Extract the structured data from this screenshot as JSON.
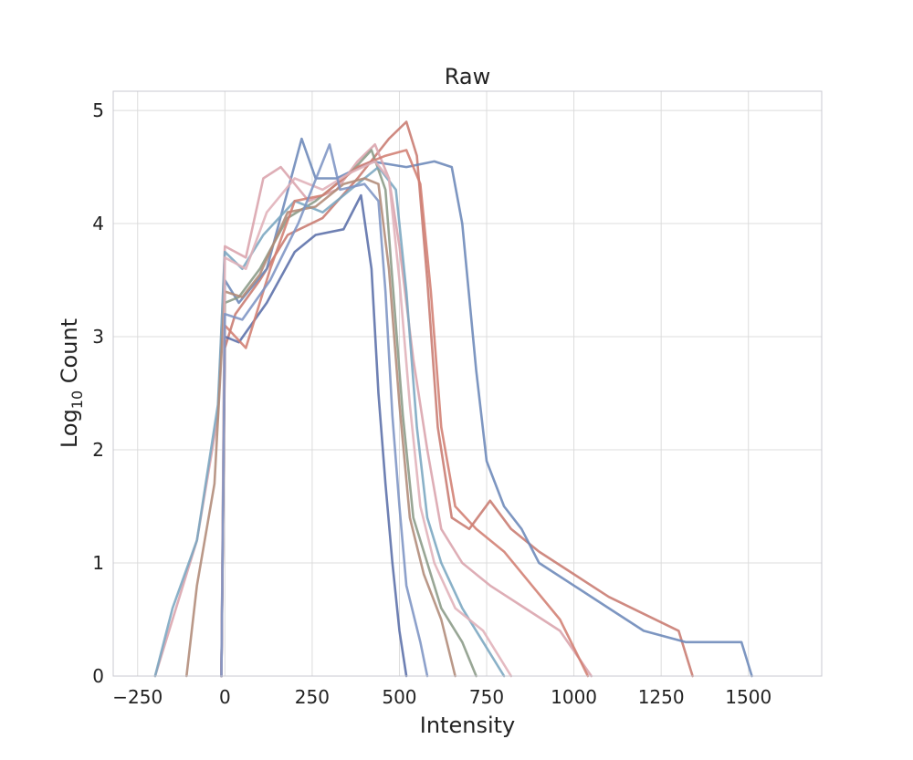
{
  "chart_data": {
    "type": "line",
    "title": "Raw",
    "xlabel": "Intensity",
    "ylabel_main": "Log",
    "ylabel_sub": "10",
    "ylabel_rest": " Count",
    "xlim": [
      -320,
      1710
    ],
    "ylim": [
      0,
      5.17
    ],
    "xticks": [
      -250,
      0,
      250,
      500,
      750,
      1000,
      1250,
      1500
    ],
    "xtick_labels": [
      "−250",
      "0",
      "250",
      "500",
      "750",
      "1000",
      "1250",
      "1500"
    ],
    "yticks": [
      0,
      1,
      2,
      3,
      4,
      5
    ],
    "ytick_labels": [
      "0",
      "1",
      "2",
      "3",
      "4",
      "5"
    ],
    "grid": true,
    "legend": "none",
    "series": [
      {
        "color": "#c87a70",
        "points": [
          [
            -10,
            0
          ],
          [
            0,
            2.9
          ],
          [
            30,
            3.2
          ],
          [
            100,
            3.5
          ],
          [
            180,
            3.9
          ],
          [
            280,
            4.05
          ],
          [
            380,
            4.4
          ],
          [
            470,
            4.75
          ],
          [
            520,
            4.9
          ],
          [
            550,
            4.6
          ],
          [
            580,
            3.5
          ],
          [
            610,
            2.2
          ],
          [
            650,
            1.4
          ],
          [
            700,
            1.3
          ],
          [
            760,
            1.55
          ],
          [
            820,
            1.3
          ],
          [
            900,
            1.1
          ],
          [
            1000,
            0.9
          ],
          [
            1100,
            0.7
          ],
          [
            1200,
            0.55
          ],
          [
            1300,
            0.4
          ],
          [
            1340,
            0
          ]
        ]
      },
      {
        "color": "#6b88b8",
        "points": [
          [
            -10,
            0
          ],
          [
            0,
            3.5
          ],
          [
            40,
            3.3
          ],
          [
            120,
            3.6
          ],
          [
            220,
            4.75
          ],
          [
            260,
            4.4
          ],
          [
            320,
            4.4
          ],
          [
            420,
            4.55
          ],
          [
            520,
            4.5
          ],
          [
            600,
            4.55
          ],
          [
            650,
            4.5
          ],
          [
            680,
            4.0
          ],
          [
            720,
            2.7
          ],
          [
            750,
            1.9
          ],
          [
            800,
            1.5
          ],
          [
            850,
            1.3
          ],
          [
            900,
            1.0
          ],
          [
            1000,
            0.8
          ],
          [
            1100,
            0.6
          ],
          [
            1200,
            0.4
          ],
          [
            1320,
            0.3
          ],
          [
            1400,
            0.3
          ],
          [
            1480,
            0.3
          ],
          [
            1510,
            0
          ]
        ]
      },
      {
        "color": "#d9a3ac",
        "points": [
          [
            -200,
            0
          ],
          [
            -150,
            0.5
          ],
          [
            -80,
            1.2
          ],
          [
            -20,
            2.3
          ],
          [
            0,
            3.8
          ],
          [
            60,
            3.7
          ],
          [
            110,
            4.4
          ],
          [
            160,
            4.5
          ],
          [
            240,
            4.2
          ],
          [
            320,
            4.3
          ],
          [
            380,
            4.55
          ],
          [
            430,
            4.7
          ],
          [
            470,
            4.4
          ],
          [
            500,
            3.8
          ],
          [
            540,
            2.8
          ],
          [
            580,
            2.0
          ],
          [
            620,
            1.3
          ],
          [
            680,
            1.0
          ],
          [
            760,
            0.8
          ],
          [
            860,
            0.6
          ],
          [
            960,
            0.4
          ],
          [
            1050,
            0
          ]
        ]
      },
      {
        "color": "#8a9a86",
        "points": [
          [
            -10,
            0
          ],
          [
            0,
            3.3
          ],
          [
            40,
            3.35
          ],
          [
            100,
            3.6
          ],
          [
            180,
            4.05
          ],
          [
            260,
            4.2
          ],
          [
            360,
            4.45
          ],
          [
            420,
            4.65
          ],
          [
            460,
            4.3
          ],
          [
            480,
            3.5
          ],
          [
            510,
            2.3
          ],
          [
            540,
            1.4
          ],
          [
            580,
            1.0
          ],
          [
            620,
            0.6
          ],
          [
            680,
            0.3
          ],
          [
            720,
            0
          ]
        ]
      },
      {
        "color": "#7aa6c0",
        "points": [
          [
            -200,
            0
          ],
          [
            -150,
            0.6
          ],
          [
            -80,
            1.2
          ],
          [
            -20,
            2.4
          ],
          [
            0,
            3.75
          ],
          [
            50,
            3.6
          ],
          [
            110,
            3.9
          ],
          [
            200,
            4.2
          ],
          [
            280,
            4.1
          ],
          [
            360,
            4.3
          ],
          [
            440,
            4.5
          ],
          [
            490,
            4.3
          ],
          [
            520,
            3.4
          ],
          [
            550,
            2.2
          ],
          [
            580,
            1.4
          ],
          [
            620,
            1.0
          ],
          [
            680,
            0.6
          ],
          [
            740,
            0.3
          ],
          [
            800,
            0
          ]
        ]
      },
      {
        "color": "#5a6ea8",
        "points": [
          [
            -10,
            0
          ],
          [
            0,
            3.0
          ],
          [
            40,
            2.95
          ],
          [
            120,
            3.3
          ],
          [
            200,
            3.75
          ],
          [
            260,
            3.9
          ],
          [
            340,
            3.95
          ],
          [
            390,
            4.25
          ],
          [
            420,
            3.6
          ],
          [
            440,
            2.5
          ],
          [
            460,
            1.7
          ],
          [
            480,
            1.0
          ],
          [
            500,
            0.4
          ],
          [
            520,
            0
          ]
        ]
      },
      {
        "color": "#b08a78",
        "points": [
          [
            -110,
            0
          ],
          [
            -80,
            0.8
          ],
          [
            -30,
            1.7
          ],
          [
            0,
            3.4
          ],
          [
            50,
            3.35
          ],
          [
            100,
            3.55
          ],
          [
            180,
            4.1
          ],
          [
            260,
            4.15
          ],
          [
            340,
            4.35
          ],
          [
            400,
            4.4
          ],
          [
            440,
            4.35
          ],
          [
            470,
            3.6
          ],
          [
            500,
            2.4
          ],
          [
            530,
            1.4
          ],
          [
            570,
            0.9
          ],
          [
            620,
            0.5
          ],
          [
            660,
            0
          ]
        ]
      },
      {
        "color": "#d17e72",
        "points": [
          [
            -10,
            0
          ],
          [
            0,
            3.1
          ],
          [
            60,
            2.9
          ],
          [
            130,
            3.6
          ],
          [
            200,
            4.2
          ],
          [
            280,
            4.25
          ],
          [
            380,
            4.5
          ],
          [
            460,
            4.6
          ],
          [
            520,
            4.65
          ],
          [
            560,
            4.35
          ],
          [
            590,
            3.4
          ],
          [
            620,
            2.2
          ],
          [
            660,
            1.5
          ],
          [
            720,
            1.3
          ],
          [
            800,
            1.1
          ],
          [
            880,
            0.8
          ],
          [
            960,
            0.5
          ],
          [
            1040,
            0
          ]
        ]
      },
      {
        "color": "#e0b0b8",
        "points": [
          [
            -10,
            0
          ],
          [
            0,
            3.7
          ],
          [
            60,
            3.6
          ],
          [
            120,
            4.1
          ],
          [
            200,
            4.4
          ],
          [
            280,
            4.3
          ],
          [
            360,
            4.45
          ],
          [
            430,
            4.55
          ],
          [
            470,
            4.4
          ],
          [
            500,
            3.5
          ],
          [
            530,
            2.4
          ],
          [
            560,
            1.5
          ],
          [
            600,
            1.0
          ],
          [
            660,
            0.6
          ],
          [
            740,
            0.4
          ],
          [
            820,
            0
          ]
        ]
      },
      {
        "color": "#7d94c4",
        "points": [
          [
            -10,
            0
          ],
          [
            0,
            3.2
          ],
          [
            50,
            3.15
          ],
          [
            130,
            3.5
          ],
          [
            210,
            4.0
          ],
          [
            300,
            4.7
          ],
          [
            330,
            4.3
          ],
          [
            400,
            4.35
          ],
          [
            440,
            4.2
          ],
          [
            460,
            3.4
          ],
          [
            480,
            2.3
          ],
          [
            500,
            1.5
          ],
          [
            520,
            0.8
          ],
          [
            560,
            0.3
          ],
          [
            580,
            0
          ]
        ]
      }
    ]
  }
}
